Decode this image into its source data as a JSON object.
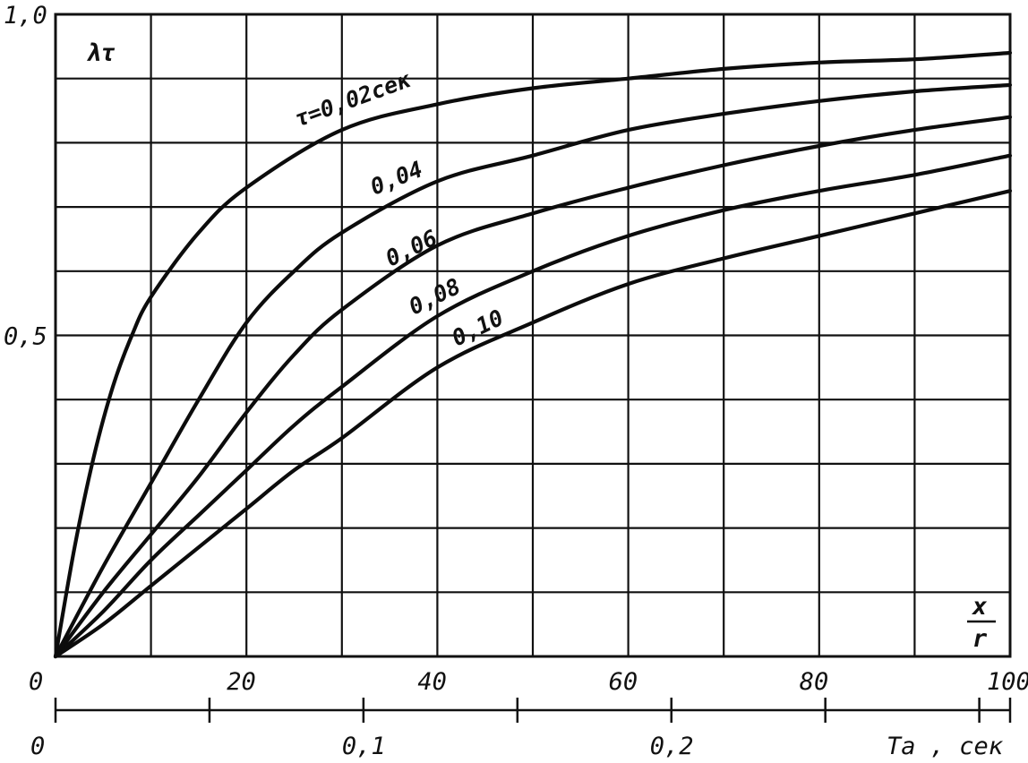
{
  "chart_data": {
    "type": "line",
    "ylabel": "λτ",
    "x_axis": {
      "label": "x/r",
      "label_num": "x",
      "label_den": "r",
      "range": [
        0,
        100
      ],
      "ticks": [
        "0",
        "20",
        "40",
        "60",
        "80",
        "100"
      ],
      "tick_values": [
        0,
        20,
        40,
        60,
        80,
        100
      ]
    },
    "secondary_x_axis": {
      "label": "Ta , сек",
      "ticks": [
        "0",
        "0,1",
        "0,2"
      ],
      "tick_values": [
        0,
        0.1,
        0.2
      ],
      "range": [
        0,
        0.31
      ]
    },
    "y_axis": {
      "range": [
        0,
        1.0
      ],
      "ticks": [
        "0,5",
        "1,0"
      ],
      "tick_values": [
        0.5,
        1.0
      ]
    },
    "grid": true,
    "series": [
      {
        "name": "τ=0,02сек",
        "label_text": "τ=0,02сек",
        "x": [
          0,
          2,
          4,
          6,
          8,
          10,
          15,
          20,
          30,
          40,
          50,
          60,
          70,
          80,
          90,
          100
        ],
        "y": [
          0,
          0.17,
          0.31,
          0.42,
          0.5,
          0.56,
          0.66,
          0.73,
          0.82,
          0.86,
          0.885,
          0.9,
          0.915,
          0.925,
          0.93,
          0.94
        ]
      },
      {
        "name": "0,04",
        "label_text": "0,04",
        "x": [
          0,
          5,
          10,
          15,
          20,
          25,
          30,
          40,
          50,
          60,
          70,
          80,
          90,
          100
        ],
        "y": [
          0,
          0.14,
          0.27,
          0.4,
          0.52,
          0.6,
          0.66,
          0.74,
          0.78,
          0.82,
          0.845,
          0.865,
          0.88,
          0.89
        ]
      },
      {
        "name": "0,06",
        "label_text": "0,06",
        "x": [
          0,
          5,
          10,
          15,
          20,
          25,
          30,
          40,
          50,
          60,
          70,
          80,
          90,
          100
        ],
        "y": [
          0,
          0.1,
          0.19,
          0.28,
          0.38,
          0.47,
          0.54,
          0.64,
          0.69,
          0.73,
          0.765,
          0.795,
          0.82,
          0.84
        ]
      },
      {
        "name": "0,08",
        "label_text": "0,08",
        "x": [
          0,
          5,
          10,
          15,
          20,
          25,
          30,
          40,
          50,
          60,
          70,
          80,
          90,
          100
        ],
        "y": [
          0,
          0.07,
          0.15,
          0.22,
          0.29,
          0.36,
          0.42,
          0.53,
          0.6,
          0.655,
          0.695,
          0.725,
          0.75,
          0.78
        ]
      },
      {
        "name": "0,10",
        "label_text": "0,10",
        "x": [
          0,
          5,
          10,
          15,
          20,
          25,
          30,
          40,
          50,
          60,
          70,
          80,
          90,
          100
        ],
        "y": [
          0,
          0.05,
          0.11,
          0.17,
          0.23,
          0.29,
          0.34,
          0.45,
          0.52,
          0.58,
          0.62,
          0.655,
          0.69,
          0.725
        ]
      }
    ]
  }
}
